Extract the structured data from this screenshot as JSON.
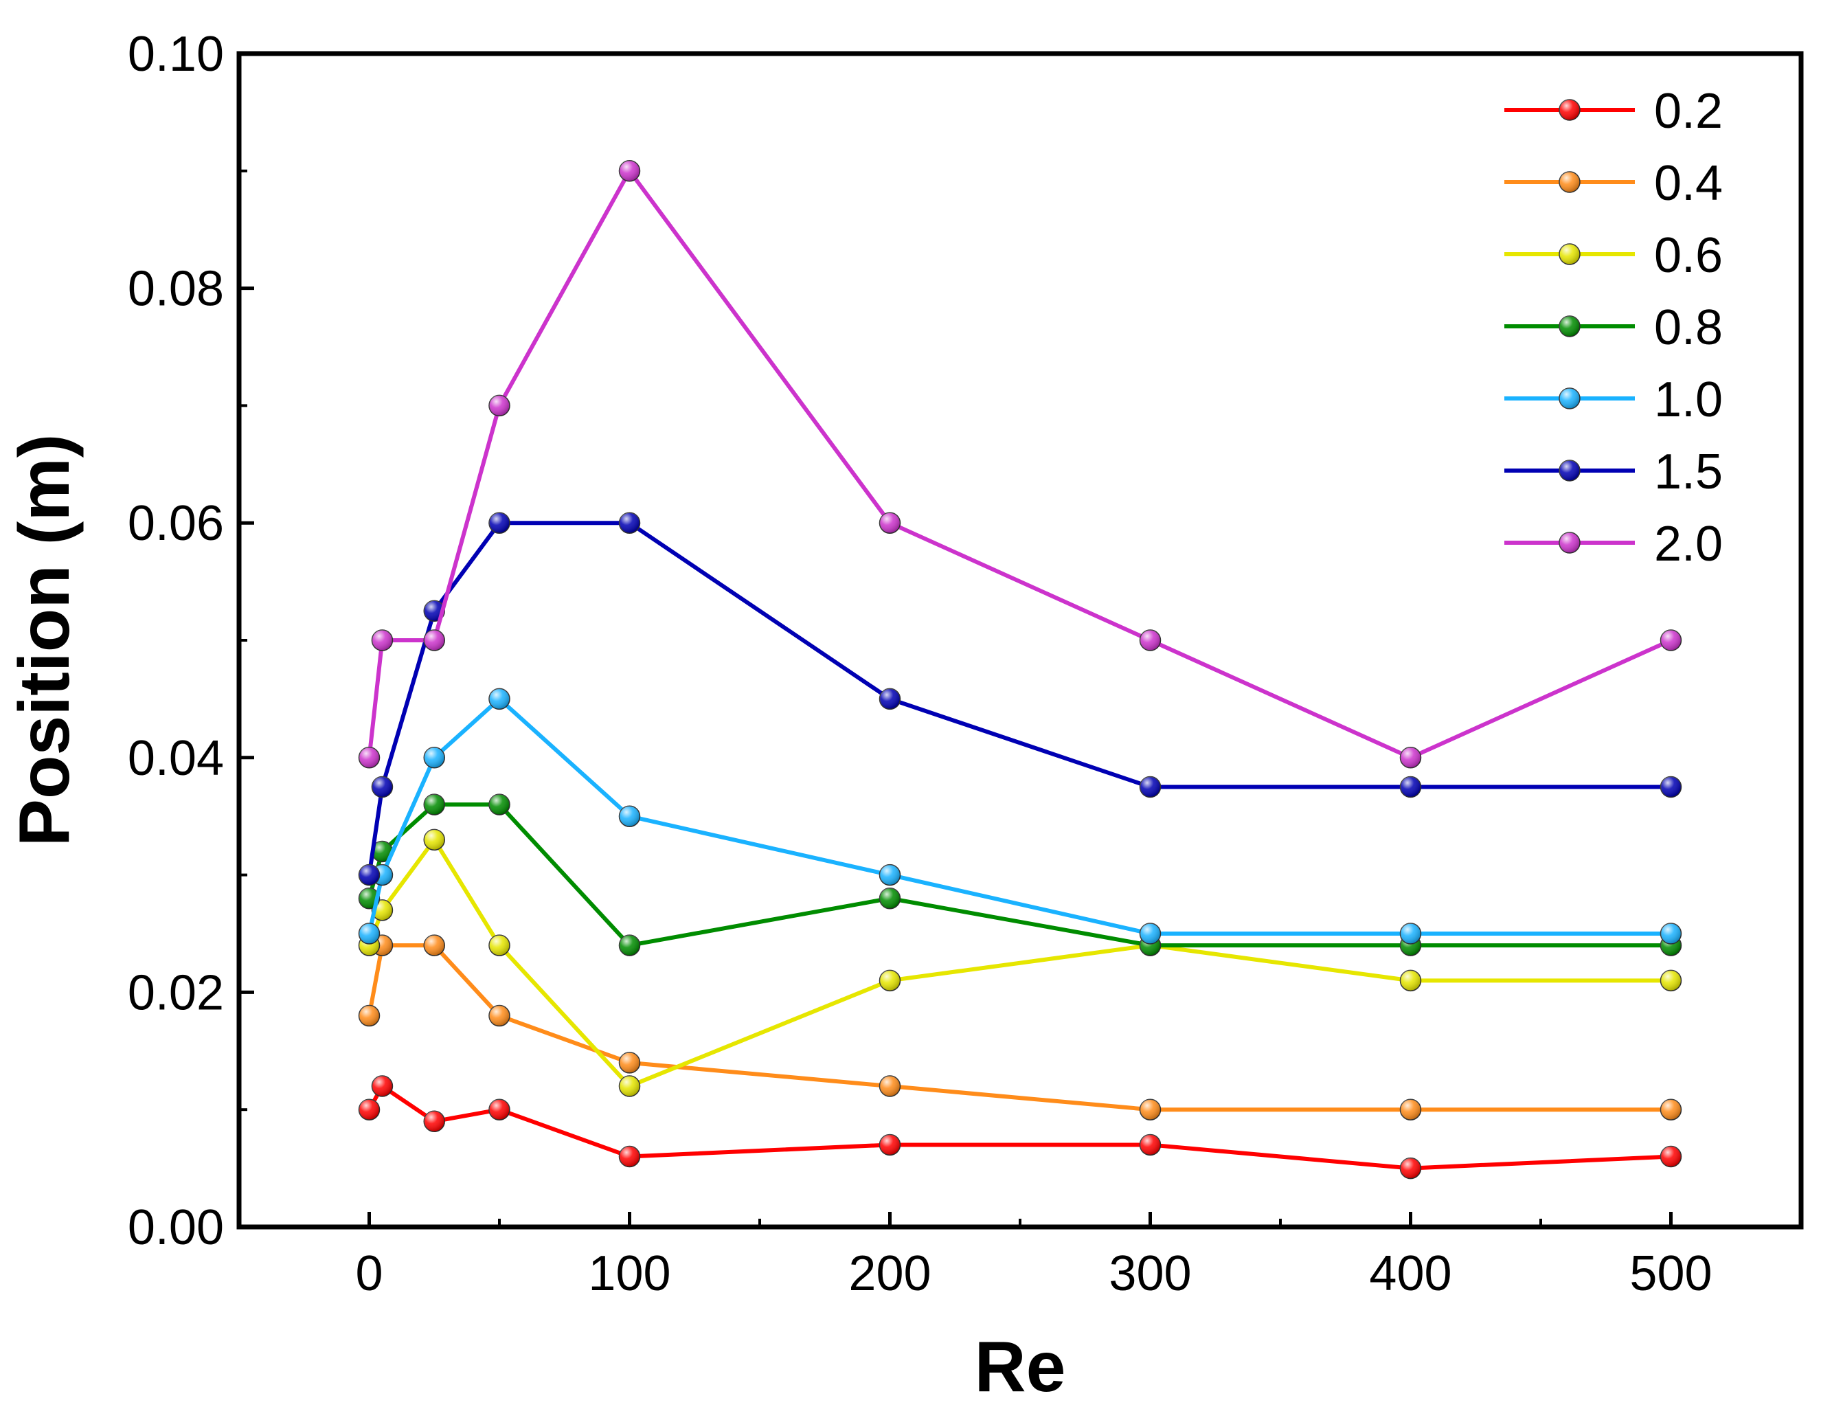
{
  "chart_data": {
    "type": "line",
    "title": "",
    "xlabel": "Re",
    "ylabel": "Position (m)",
    "xlim": [
      -50,
      550
    ],
    "ylim": [
      0,
      0.1
    ],
    "xticks": [
      0,
      100,
      200,
      300,
      400,
      500
    ],
    "xtick_labels": [
      "0",
      "100",
      "200",
      "300",
      "400",
      "500"
    ],
    "yticks": [
      0,
      0.02,
      0.04,
      0.06,
      0.08,
      0.1
    ],
    "ytick_labels": [
      "0.00",
      "0.02",
      "0.04",
      "0.06",
      "0.08",
      "0.10"
    ],
    "x": [
      0,
      5,
      25,
      50,
      100,
      200,
      300,
      400,
      500
    ],
    "legend_position": "top-right",
    "grid": false,
    "series": [
      {
        "name": "0.2",
        "color": "#ff0000",
        "values": [
          0.01,
          0.012,
          0.009,
          0.01,
          0.006,
          0.007,
          0.007,
          0.005,
          0.006
        ]
      },
      {
        "name": "0.4",
        "color": "#ff8c1a",
        "values": [
          0.018,
          0.024,
          0.024,
          0.018,
          0.014,
          0.012,
          0.01,
          0.01,
          0.01
        ]
      },
      {
        "name": "0.6",
        "color": "#e6e600",
        "values": [
          0.024,
          0.027,
          0.033,
          0.024,
          0.012,
          0.021,
          0.024,
          0.021,
          0.021
        ]
      },
      {
        "name": "0.8",
        "color": "#008c00",
        "values": [
          0.028,
          0.032,
          0.036,
          0.036,
          0.024,
          0.028,
          0.024,
          0.024,
          0.024
        ]
      },
      {
        "name": "1.0",
        "color": "#1ab2ff",
        "values": [
          0.025,
          0.03,
          0.04,
          0.045,
          0.035,
          0.03,
          0.025,
          0.025,
          0.025
        ]
      },
      {
        "name": "1.5",
        "color": "#0000b3",
        "values": [
          0.03,
          0.0375,
          0.0525,
          0.06,
          0.06,
          0.045,
          0.0375,
          0.0375,
          0.0375
        ]
      },
      {
        "name": "2.0",
        "color": "#cc33cc",
        "values": [
          0.04,
          0.05,
          0.05,
          0.07,
          0.09,
          0.06,
          0.05,
          0.04,
          0.05
        ]
      }
    ]
  }
}
